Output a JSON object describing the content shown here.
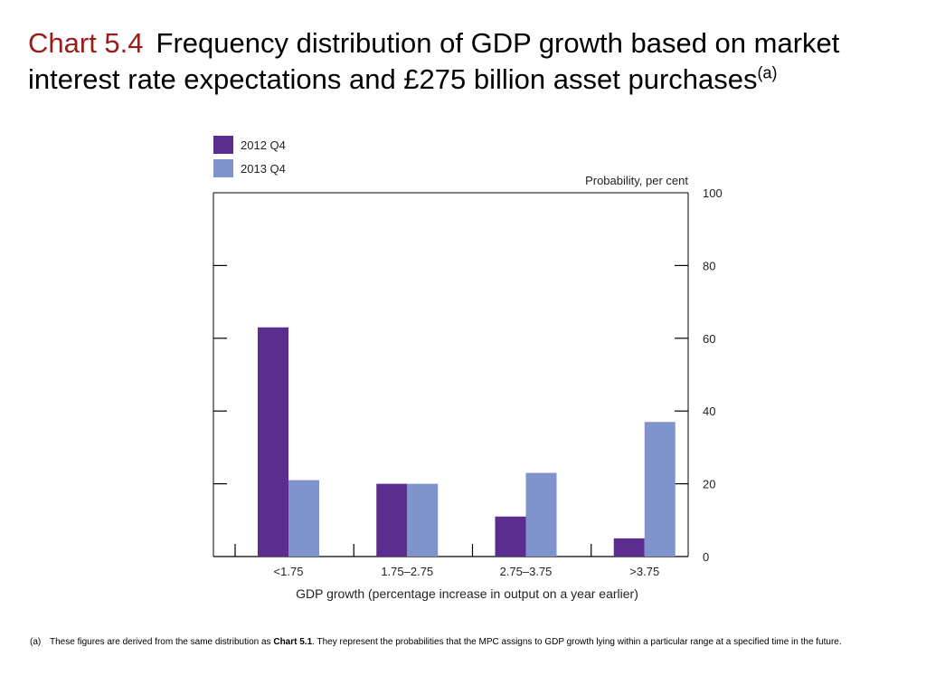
{
  "title": {
    "chart_number": "Chart 5.4",
    "text": "Frequency distribution of GDP growth based on market interest rate expectations and £275 billion asset purchases",
    "superscript": "(a)"
  },
  "footnote": {
    "marker": "(a)",
    "text_before": "These figures are derived from the same distribution as ",
    "bold_ref": "Chart 5.1",
    "text_after": ".  They represent the probabilities that the MPC assigns to GDP growth lying within a particular range at a specified time in the future."
  },
  "colors": {
    "series_2012": "#5b2d8e",
    "series_2013": "#7f93cc"
  },
  "chart_data": {
    "type": "bar",
    "categories": [
      "<1.75",
      "1.75–2.75",
      "2.75–3.75",
      ">3.75"
    ],
    "series": [
      {
        "name": "2012 Q4",
        "values": [
          63,
          20,
          11,
          5
        ]
      },
      {
        "name": "2013 Q4",
        "values": [
          21,
          20,
          23,
          37
        ]
      }
    ],
    "xlabel": "GDP growth (percentage increase in output on a year earlier)",
    "ylabel": "Probability, per cent",
    "ylim": [
      0,
      100
    ],
    "yticks": [
      0,
      20,
      40,
      60,
      80,
      100
    ],
    "grid": false,
    "legend": "top-left"
  }
}
